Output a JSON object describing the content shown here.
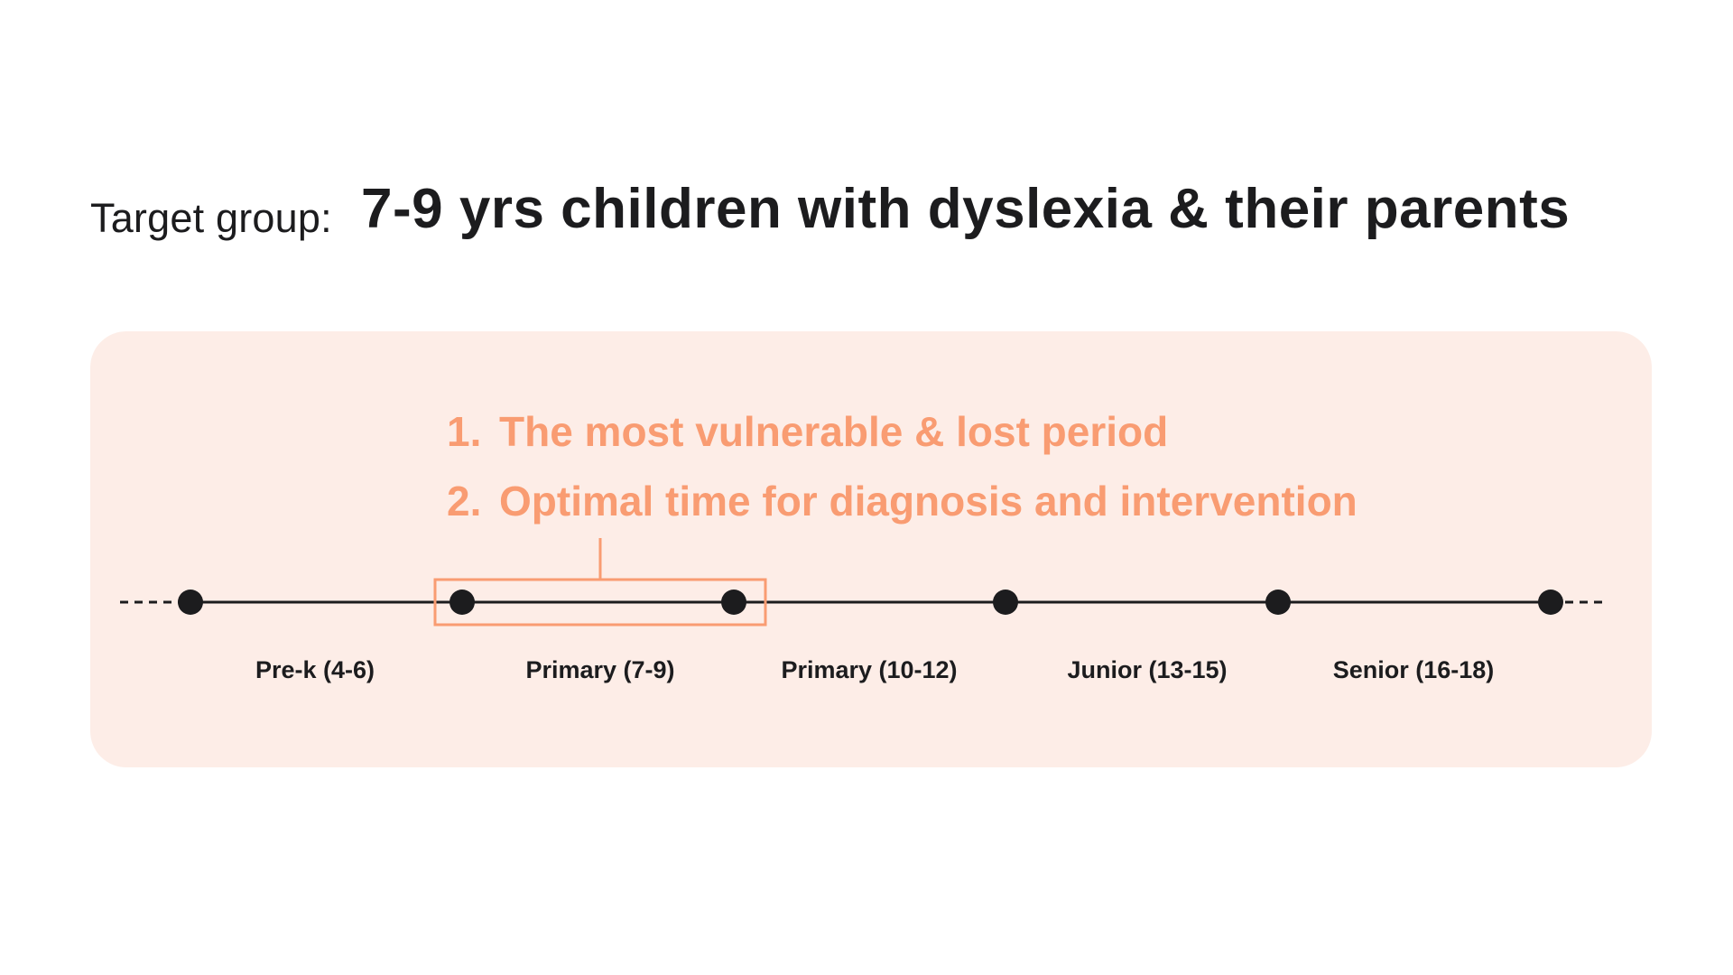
{
  "header": {
    "label": "Target group:",
    "value": "7-9 yrs children with dyslexia & their parents"
  },
  "notes": [
    {
      "number": "1.",
      "text": "The most vulnerable & lost period"
    },
    {
      "number": "2.",
      "text": "Optimal time for diagnosis and intervention"
    }
  ],
  "timeline": {
    "stages": [
      "Pre-k (4-6)",
      "Primary (7-9)",
      "Primary (10-12)",
      "Junior (13-15)",
      "Senior (16-18)"
    ],
    "highlighted_stage": "Primary (7-9)"
  },
  "colors": {
    "accent": "#f99c72",
    "panel": "#fdede7",
    "line": "#1c1c1e"
  }
}
